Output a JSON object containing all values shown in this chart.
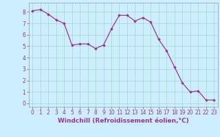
{
  "x": [
    0,
    1,
    2,
    3,
    4,
    5,
    6,
    7,
    8,
    9,
    10,
    11,
    12,
    13,
    14,
    15,
    16,
    17,
    18,
    19,
    20,
    21,
    22,
    23
  ],
  "y": [
    8.1,
    8.2,
    7.8,
    7.3,
    7.0,
    5.1,
    5.2,
    5.2,
    4.8,
    5.1,
    6.5,
    7.7,
    7.7,
    7.2,
    7.5,
    7.1,
    5.6,
    4.6,
    3.2,
    1.8,
    1.0,
    1.1,
    0.3,
    0.3
  ],
  "line_color": "#993399",
  "marker": "D",
  "marker_size": 1.8,
  "linewidth": 0.9,
  "bg_color": "#cceeff",
  "grid_color": "#aaddcc",
  "xlabel": "Windchill (Refroidissement éolien,°C)",
  "xlabel_fontsize": 6.5,
  "xlabel_color": "#993399",
  "tick_fontsize": 5.5,
  "tick_color": "#993399",
  "ylim": [
    -0.3,
    8.8
  ],
  "xlim": [
    -0.5,
    23.5
  ],
  "yticks": [
    0,
    1,
    2,
    3,
    4,
    5,
    6,
    7,
    8
  ],
  "xticks": [
    0,
    1,
    2,
    3,
    4,
    5,
    6,
    7,
    8,
    9,
    10,
    11,
    12,
    13,
    14,
    15,
    16,
    17,
    18,
    19,
    20,
    21,
    22,
    23
  ]
}
